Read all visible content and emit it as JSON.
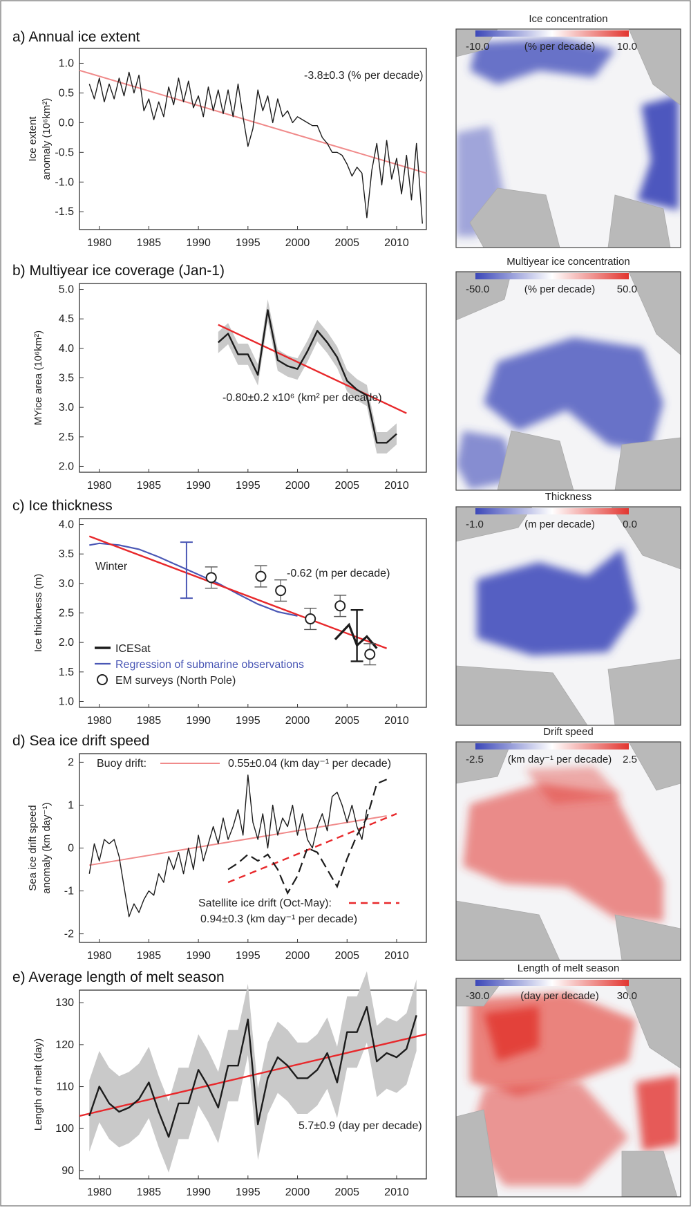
{
  "colors": {
    "trend_red": "#e8282b",
    "light_red": "#f08a8a",
    "series_black": "#1c1c1c",
    "band_grey": "#c9c9c9",
    "submarine_blue": "#4a57b5",
    "map_blue": "#3b47b8",
    "map_red": "#e2352f",
    "land_grey": "#b9b9b9"
  },
  "years": [
    "1980",
    "1985",
    "1990",
    "1995",
    "2000",
    "2005",
    "2010"
  ],
  "panels": [
    {
      "id": "a",
      "title": "a) Annual ice extent",
      "ylabel1": "Ice extent",
      "ylabel2": "anomaly (10⁶km²)",
      "yticks": [
        "1.0",
        "0.5",
        "0.0",
        "-0.5",
        "-1.0",
        "-1.5"
      ],
      "annotation": "-3.8±0.3 (% per decade)",
      "map": {
        "title": "Ice concentration",
        "scale_min": "-10.0",
        "scale_unit": "(% per decade)",
        "scale_max": "10.0"
      }
    },
    {
      "id": "b",
      "title": "b) Multiyear ice coverage (Jan-1)",
      "ylabel1": "MYice area (10⁶km²)",
      "ylabel2": "",
      "yticks": [
        "5.0",
        "4.5",
        "4.0",
        "3.5",
        "3.0",
        "2.5",
        "2.0"
      ],
      "annotation": "-0.80±0.2 x10⁶ (km² per decade)",
      "map": {
        "title": "Multiyear ice concentration",
        "scale_min": "-50.0",
        "scale_unit": "(% per decade)",
        "scale_max": "50.0"
      }
    },
    {
      "id": "c",
      "title": "c) Ice thickness",
      "ylabel1": "Ice thickness (m)",
      "ylabel2": "",
      "yticks": [
        "4.0",
        "3.5",
        "3.0",
        "2.5",
        "2.0",
        "1.5",
        "1.0"
      ],
      "annotation": "-0.62 (m per decade)",
      "winter_label": "Winter",
      "legend": [
        "ICESat",
        "Regression of submarine observations",
        "EM surveys (North Pole)"
      ],
      "map": {
        "title": "Thickness",
        "scale_min": "-1.0",
        "scale_unit": "(m per decade)",
        "scale_max": "0.0"
      }
    },
    {
      "id": "d",
      "title": "d) Sea ice drift speed",
      "ylabel1": "Sea ice drift speed",
      "ylabel2": "anomaly (km day⁻¹)",
      "yticks": [
        "2",
        "1",
        "0",
        "-1",
        "-2"
      ],
      "buoy_label": "Buoy drift:",
      "annotation": "0.55±0.04 (km day⁻¹ per decade)",
      "sat_label": "Satellite ice drift (Oct-May):",
      "sat_annotation": "0.94±0.3 (km day⁻¹ per decade)",
      "map": {
        "title": "Drift speed",
        "scale_min": "-2.5",
        "scale_unit": "(km day⁻¹ per decade)",
        "scale_max": "2.5"
      }
    },
    {
      "id": "e",
      "title": "e) Average length of melt season",
      "ylabel1": "Length of melt (day)",
      "ylabel2": "",
      "yticks": [
        "130",
        "120",
        "110",
        "100",
        "90"
      ],
      "annotation": "5.7±0.9 (day per decade)",
      "map": {
        "title": "Length of melt season",
        "scale_min": "-30.0",
        "scale_unit": "(day per decade)",
        "scale_max": "30.0"
      }
    }
  ],
  "chart_data": [
    {
      "type": "line",
      "title": "a) Annual ice extent",
      "xlabel": "",
      "ylabel": "Ice extent anomaly (10⁶km²)",
      "xlim": [
        1978,
        2013
      ],
      "ylim": [
        -1.8,
        1.25
      ],
      "series": [
        {
          "x": [
            1979,
            1979.5,
            1980,
            1980.5,
            1981,
            1981.5,
            1982,
            1982.5,
            1983,
            1983.5,
            1984,
            1984.5,
            1985,
            1985.5,
            1986,
            1986.5,
            1987,
            1987.5,
            1988,
            1988.5,
            1989,
            1989.5,
            1990,
            1990.5,
            1991,
            1991.5,
            1992,
            1992.5,
            1993,
            1993.5,
            1994,
            1994.5,
            1995,
            1995.5,
            1996,
            1996.5,
            1997,
            1997.5,
            1998,
            1998.5,
            1999,
            1999.5,
            2000,
            2000.5,
            2001,
            2001.5,
            2002,
            2002.5,
            2003,
            2003.5,
            2004,
            2004.5,
            2005,
            2005.5,
            2006,
            2006.5,
            2007,
            2007.5,
            2008,
            2008.5,
            2009,
            2009.5,
            2010,
            2010.5,
            2011,
            2011.5,
            2012,
            2012.3,
            2012.6
          ],
          "y": [
            0.65,
            0.4,
            0.75,
            0.35,
            0.65,
            0.4,
            0.75,
            0.45,
            0.85,
            0.5,
            0.8,
            0.2,
            0.4,
            0.05,
            0.35,
            0.1,
            0.6,
            0.3,
            0.75,
            0.35,
            0.7,
            0.25,
            0.45,
            0.1,
            0.6,
            0.2,
            0.55,
            0.15,
            0.55,
            0.1,
            0.65,
            0.1,
            -0.4,
            -0.1,
            0.55,
            0.2,
            0.45,
            0.0,
            0.4,
            0.1,
            0.2,
            0.0,
            0.1,
            0.05,
            0.0,
            -0.05,
            -0.05,
            -0.25,
            -0.35,
            -0.5,
            -0.5,
            -0.55,
            -0.7,
            -0.9,
            -0.75,
            -0.85,
            -1.6,
            -0.8,
            -0.35,
            -1.05,
            -0.3,
            -0.95,
            -0.6,
            -1.2,
            -0.55,
            -1.3,
            -0.35,
            -1.0,
            -1.7
          ]
        },
        {
          "x": [
            1978,
            2013
          ],
          "y": [
            0.88,
            -0.85
          ]
        }
      ]
    },
    {
      "type": "line",
      "title": "b) Multiyear ice coverage (Jan-1)",
      "xlabel": "",
      "ylabel": "MYice area (10⁶km²)",
      "xlim": [
        1978,
        2013
      ],
      "ylim": [
        1.9,
        5.1
      ],
      "series": [
        {
          "x": [
            1992,
            1993,
            1994,
            1995,
            1996,
            1997,
            1998,
            1999,
            2000,
            2001,
            2002,
            2003,
            2004,
            2005,
            2006,
            2007,
            2008,
            2009,
            2010
          ],
          "y": [
            4.1,
            4.25,
            3.9,
            3.9,
            3.55,
            4.65,
            3.8,
            3.7,
            3.65,
            3.95,
            4.3,
            4.1,
            3.85,
            3.45,
            3.3,
            3.2,
            2.4,
            2.4,
            2.55
          ]
        },
        {
          "x": [
            1992,
            2011
          ],
          "y": [
            4.4,
            2.9
          ]
        }
      ]
    },
    {
      "type": "line",
      "title": "c) Ice thickness",
      "xlabel": "",
      "ylabel": "Ice thickness (m)",
      "xlim": [
        1978,
        2013
      ],
      "ylim": [
        0.9,
        4.1
      ],
      "series": [
        {
          "name": "Regression of submarine observations",
          "x": [
            1979,
            1980,
            1982,
            1984,
            1986,
            1988,
            1990,
            1992,
            1994,
            1996,
            1998,
            2000
          ],
          "y": [
            3.65,
            3.68,
            3.65,
            3.58,
            3.45,
            3.3,
            3.15,
            3.0,
            2.82,
            2.65,
            2.52,
            2.45
          ]
        },
        {
          "name": "ICESat",
          "x": [
            2003.8,
            2005.2,
            2006.0,
            2007.0,
            2008.0
          ],
          "y": [
            2.05,
            2.3,
            1.95,
            2.1,
            1.9
          ]
        },
        {
          "name": "EM surveys (North Pole)",
          "x": [
            1991.3,
            1996.3,
            1998.3,
            2001.3,
            2004.3,
            2007.3
          ],
          "y": [
            3.1,
            3.12,
            2.88,
            2.4,
            2.62,
            1.8
          ]
        },
        {
          "x": [
            1979,
            2009
          ],
          "y": [
            3.8,
            1.9
          ]
        }
      ]
    },
    {
      "type": "line",
      "title": "d) Sea ice drift speed",
      "xlabel": "",
      "ylabel": "Sea ice drift speed anomaly (km day⁻¹)",
      "xlim": [
        1978,
        2013
      ],
      "ylim": [
        -2.2,
        2.2
      ],
      "series": [
        {
          "name": "Buoy drift:",
          "x": [
            1979,
            1979.5,
            1980,
            1980.5,
            1981,
            1981.5,
            1982,
            1982.5,
            1983,
            1983.5,
            1984,
            1984.5,
            1985,
            1985.5,
            1986,
            1986.5,
            1987,
            1987.5,
            1988,
            1988.5,
            1989,
            1989.5,
            1990,
            1990.5,
            1991,
            1991.5,
            1992,
            1992.5,
            1993,
            1993.5,
            1994,
            1994.5,
            1995,
            1995.5,
            1996,
            1996.5,
            1997,
            1997.5,
            1998,
            1998.5,
            1999,
            1999.5,
            2000,
            2000.5,
            2001,
            2001.5,
            2002,
            2002.5,
            2003,
            2003.5,
            2004,
            2004.5,
            2005,
            2005.5,
            2006,
            2006.5,
            2007
          ],
          "y": [
            -0.6,
            0.1,
            -0.3,
            0.2,
            0.1,
            0.2,
            -0.2,
            -0.9,
            -1.6,
            -1.3,
            -1.5,
            -1.2,
            -1.0,
            -1.1,
            -0.6,
            -0.8,
            -0.2,
            -0.5,
            -0.1,
            -0.6,
            0.0,
            -0.5,
            0.3,
            -0.3,
            0.1,
            0.5,
            0.1,
            0.7,
            0.2,
            0.5,
            0.9,
            0.3,
            1.7,
            0.6,
            0.2,
            0.8,
            0.0,
            1.0,
            0.3,
            0.7,
            0.5,
            1.0,
            0.3,
            0.8,
            0.2,
            0.0,
            0.5,
            0.8,
            0.4,
            1.2,
            1.3,
            1.0,
            0.6,
            1.0,
            0.5,
            0.2,
            0.9
          ]
        },
        {
          "name": "Satellite ice drift (Oct-May):",
          "x": [
            1993,
            1994,
            1995,
            1996,
            1997,
            1998,
            1999,
            2000,
            2001,
            2002,
            2003,
            2004,
            2005,
            2006,
            2007,
            2008,
            2009
          ],
          "y": [
            -0.5,
            -0.35,
            -0.15,
            -0.3,
            -0.15,
            -0.5,
            -1.05,
            -0.65,
            0.0,
            -0.1,
            -0.5,
            -0.9,
            -0.25,
            0.3,
            0.7,
            1.5,
            1.6
          ]
        },
        {
          "x": [
            1979,
            2009
          ],
          "y": [
            -0.4,
            0.75
          ]
        },
        {
          "x": [
            1993,
            2010
          ],
          "y": [
            -0.8,
            0.8
          ]
        }
      ]
    },
    {
      "type": "line",
      "title": "e) Average length of melt season",
      "xlabel": "",
      "ylabel": "Length of melt (day)",
      "xlim": [
        1978,
        2013
      ],
      "ylim": [
        88,
        133
      ],
      "series": [
        {
          "x": [
            1979,
            1980,
            1981,
            1982,
            1983,
            1984,
            1985,
            1986,
            1987,
            1988,
            1989,
            1990,
            1991,
            1992,
            1993,
            1994,
            1995,
            1996,
            1997,
            1998,
            1999,
            2000,
            2001,
            2002,
            2003,
            2004,
            2005,
            2006,
            2007,
            2008,
            2009,
            2010,
            2011,
            2012
          ],
          "y": [
            103,
            110,
            106,
            104,
            105,
            107,
            111,
            104,
            98,
            106,
            106,
            114,
            110,
            105,
            115,
            115,
            126,
            101,
            112,
            117,
            115,
            112,
            112,
            114,
            118,
            111,
            123,
            123,
            129,
            116,
            118,
            117,
            119,
            127
          ]
        },
        {
          "x": [
            1978,
            2013
          ],
          "y": [
            103,
            122.5
          ]
        }
      ]
    }
  ]
}
